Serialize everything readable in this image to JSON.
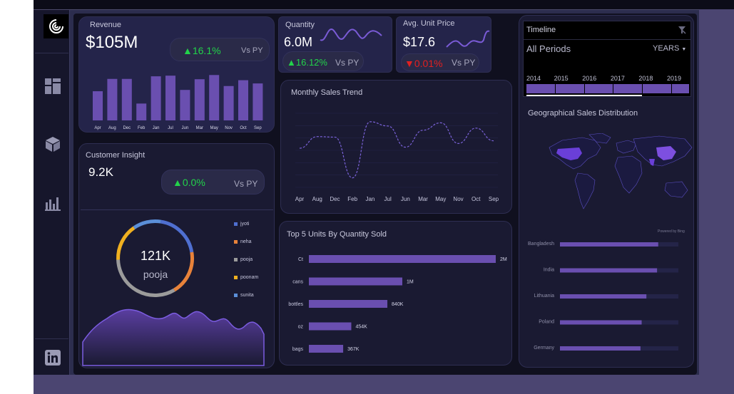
{
  "colors": {
    "accent": "#6a4fb0",
    "up": "#22d34a",
    "down": "#e02020",
    "background": "#10101f"
  },
  "sidebar": {
    "icons": [
      "grid-icon",
      "cube-icon",
      "bar-chart-icon",
      "linkedin-icon"
    ]
  },
  "revenue": {
    "title": "Revenue",
    "value": "$105M",
    "change": "16.1%",
    "vs": "Vs PY",
    "chart_data": {
      "type": "bar",
      "categories": [
        "Apr",
        "Aug",
        "Dec",
        "Feb",
        "Jan",
        "Jul",
        "Jun",
        "Mar",
        "May",
        "Nov",
        "Oct",
        "Sep"
      ],
      "values": [
        9.0,
        12.8,
        12.8,
        5.2,
        13.6,
        13.8,
        9.4,
        12.7,
        14.0,
        10.6,
        12.4,
        11.4
      ]
    }
  },
  "quantity": {
    "title": "Quantity",
    "value": "6.0M",
    "change": "16.12%",
    "vs": "Vs PY"
  },
  "unit_price": {
    "title": "Avg. Unit Price",
    "value": "$17.6",
    "change": "0.01%",
    "vs": "Vs PY"
  },
  "customer": {
    "title": "Customer Insight",
    "value": "9.2K",
    "change": "0.0%",
    "vs": "Vs PY",
    "donut_value": "121K",
    "donut_label": "pooja",
    "legend": [
      {
        "name": "jyoti",
        "color": "#4f6fd0"
      },
      {
        "name": "neha",
        "color": "#e8823a"
      },
      {
        "name": "pooja",
        "color": "#9b9b9b"
      },
      {
        "name": "poonam",
        "color": "#f0b020"
      },
      {
        "name": "sunita",
        "color": "#5b8fd8"
      }
    ],
    "chart_data": {
      "type": "pie",
      "categories": [
        "jyoti",
        "neha",
        "pooja",
        "poonam",
        "sunita"
      ],
      "values": [
        20,
        19,
        33,
        16,
        12
      ]
    }
  },
  "monthly_trend": {
    "title": "Monthly Sales Trend",
    "chart_data": {
      "type": "line",
      "categories": [
        "Apr",
        "Aug",
        "Dec",
        "Feb",
        "Jan",
        "Jul",
        "Jun",
        "Mar",
        "May",
        "Nov",
        "Oct",
        "Sep"
      ],
      "values": [
        7.4,
        9.6,
        9.5,
        1.8,
        12.4,
        11.6,
        7.6,
        10.8,
        12.2,
        8.3,
        11.2,
        8.8
      ]
    }
  },
  "top5": {
    "title": "Top 5 Units By Quantity Sold",
    "chart_data": {
      "type": "bar",
      "categories": [
        "Ct",
        "cans",
        "bottles",
        "oz",
        "bags"
      ],
      "values": [
        2000000,
        1000000,
        840000,
        454000,
        367000
      ],
      "labels": [
        "2M",
        "1M",
        "840K",
        "454K",
        "367K"
      ]
    }
  },
  "timeline": {
    "title": "Timeline",
    "periods": "All Periods",
    "unit": "YEARS",
    "years": [
      "2014",
      "2015",
      "2016",
      "2017",
      "2018",
      "2019"
    ]
  },
  "geo": {
    "title": "Geographical Sales Distribution",
    "powered_by": "Powered by Bing",
    "chart_data": {
      "type": "bar",
      "categories": [
        "Bangladesh",
        "India",
        "Lithuania",
        "Poland",
        "Germany"
      ],
      "values": [
        0.83,
        0.82,
        0.73,
        0.69,
        0.68
      ]
    }
  }
}
